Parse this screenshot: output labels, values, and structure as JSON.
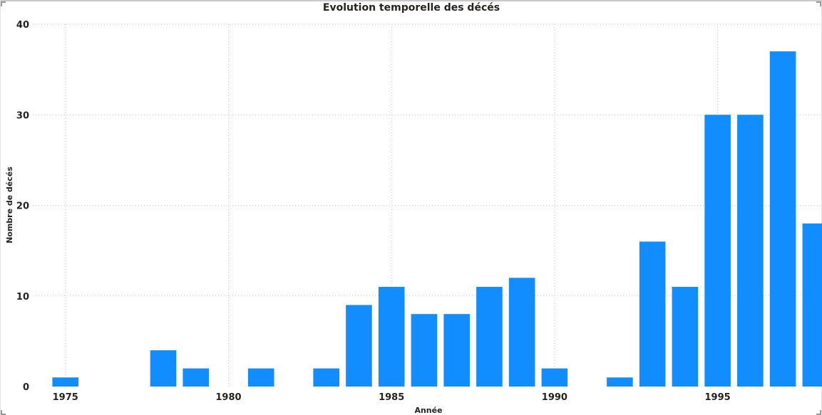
{
  "chart_data": {
    "type": "bar",
    "title": "Evolution temporelle des décés",
    "xlabel": "Année",
    "ylabel": "Nombre de décés",
    "x": [
      1975,
      1978,
      1979,
      1981,
      1983,
      1984,
      1985,
      1986,
      1987,
      1988,
      1989,
      1990,
      1992,
      1993,
      1994,
      1995,
      1996,
      1997,
      1998
    ],
    "values": [
      1,
      4,
      2,
      2,
      2,
      9,
      11,
      8,
      8,
      11,
      12,
      2,
      1,
      16,
      11,
      30,
      30,
      37,
      18
    ],
    "xlim": [
      1974,
      1998.2
    ],
    "ylim": [
      0,
      40
    ],
    "x_ticks": [
      "1975",
      "1980",
      "1985",
      "1990",
      "1995"
    ],
    "y_ticks": [
      "0",
      "10",
      "20",
      "30",
      "40"
    ],
    "grid": true,
    "legend": "none",
    "bar_color": "#118DFF"
  }
}
